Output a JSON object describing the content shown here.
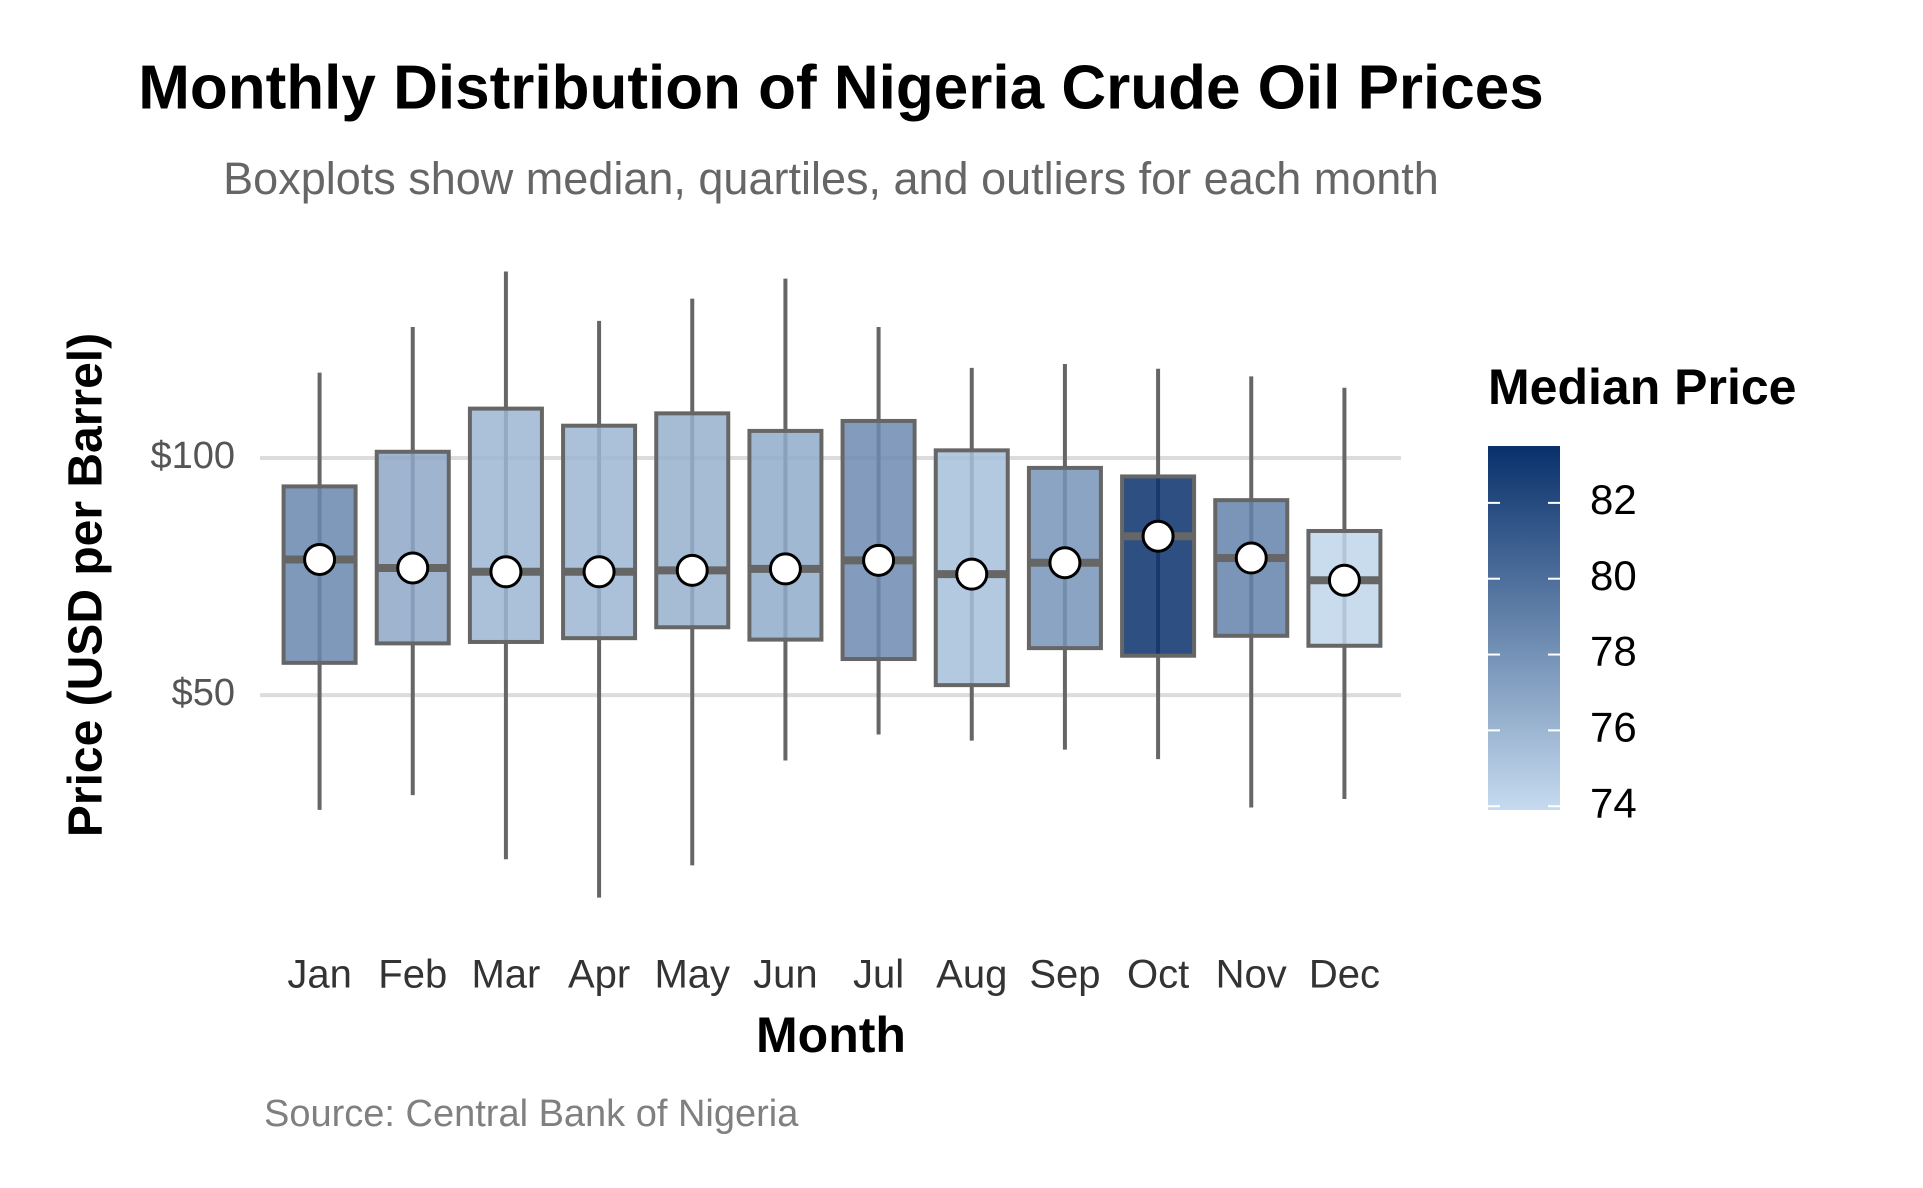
{
  "chart_data": {
    "type": "boxplot",
    "title": "Monthly Distribution of Nigeria Crude Oil Prices",
    "subtitle": "Boxplots show median, quartiles, and outliers for each month",
    "x_label": "Month",
    "y_label": "Price (USD per Barrel)",
    "source": "Source: Central Bank of Nigeria",
    "categories": [
      "Jan",
      "Feb",
      "Mar",
      "Apr",
      "May",
      "Jun",
      "Jul",
      "Aug",
      "Sep",
      "Oct",
      "Nov",
      "Dec"
    ],
    "min": [
      25.8,
      28.9,
      15.4,
      7.3,
      14.1,
      36.2,
      41.7,
      40.4,
      38.5,
      36.5,
      26.3,
      28.1
    ],
    "q1": [
      56.8,
      60.9,
      61.2,
      62.0,
      64.3,
      61.7,
      57.6,
      52.1,
      59.9,
      58.3,
      62.5,
      60.4
    ],
    "median": [
      78.6,
      76.8,
      76.0,
      76.0,
      76.3,
      76.6,
      78.4,
      75.5,
      77.9,
      83.5,
      78.9,
      74.2
    ],
    "q3": [
      94.0,
      101.3,
      110.4,
      106.8,
      109.4,
      105.7,
      107.8,
      101.6,
      97.9,
      96.1,
      91.1,
      84.6
    ],
    "max": [
      118.0,
      127.6,
      139.3,
      128.9,
      133.6,
      137.8,
      127.6,
      119.0,
      119.8,
      118.8,
      117.2,
      114.8
    ],
    "ylim": [
      3,
      143
    ],
    "yticks": [
      {
        "value": 50,
        "label": "$50"
      },
      {
        "value": 100,
        "label": "$100"
      }
    ],
    "grid": true,
    "legend_title": "Median Price",
    "colorbar_lim": [
      73.9,
      83.5
    ],
    "colorbar_ticks": [
      74,
      76,
      78,
      80,
      82
    ],
    "colors": [
      "#c6dbef",
      "#08306b"
    ],
    "box_edge_color": "#666666"
  }
}
